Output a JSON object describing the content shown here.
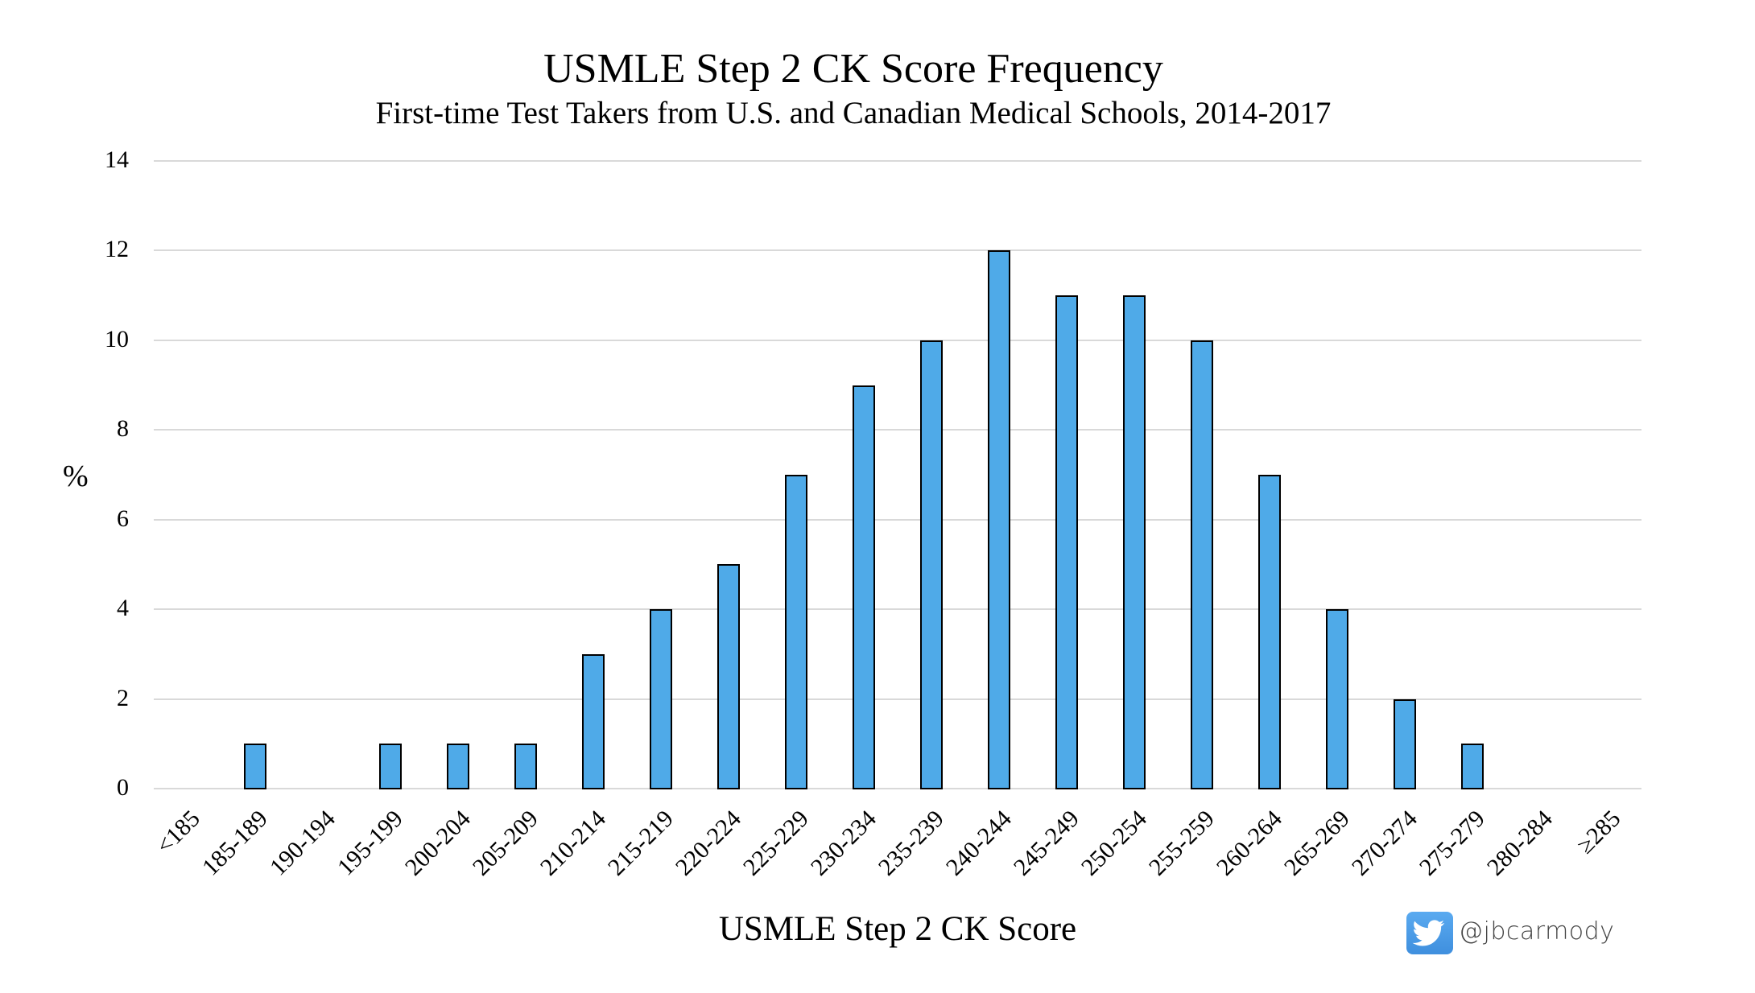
{
  "chart_data": {
    "type": "bar",
    "title": "USMLE Step 2 CK Score Frequency",
    "subtitle": "First-time Test Takers from U.S. and Canadian Medical Schools, 2014-2017",
    "xlabel": "USMLE Step 2 CK Score",
    "ylabel": "%",
    "ylim": [
      0,
      14
    ],
    "yticks": [
      "0",
      "2",
      "4",
      "6",
      "8",
      "10",
      "12",
      "14"
    ],
    "grid": true,
    "legend": null,
    "categories": [
      "<185",
      "185-189",
      "190-194",
      "195-199",
      "200-204",
      "205-209",
      "210-214",
      "215-219",
      "220-224",
      "225-229",
      "230-234",
      "235-239",
      "240-244",
      "245-249",
      "250-254",
      "255-259",
      "260-264",
      "265-269",
      "270-274",
      "275-279",
      "280-284",
      "≥285"
    ],
    "values": [
      0,
      1,
      0,
      1,
      1,
      1,
      3,
      4,
      5,
      7,
      9,
      10,
      12,
      11,
      11,
      10,
      7,
      4,
      2,
      1,
      0,
      0
    ],
    "colors": {
      "bar": "#4FAAE8",
      "bar_edge": "#000000",
      "grid": "#D9D9D9"
    }
  },
  "watermark": {
    "icon": "twitter-bird-icon",
    "handle": "@jbcarmody"
  }
}
